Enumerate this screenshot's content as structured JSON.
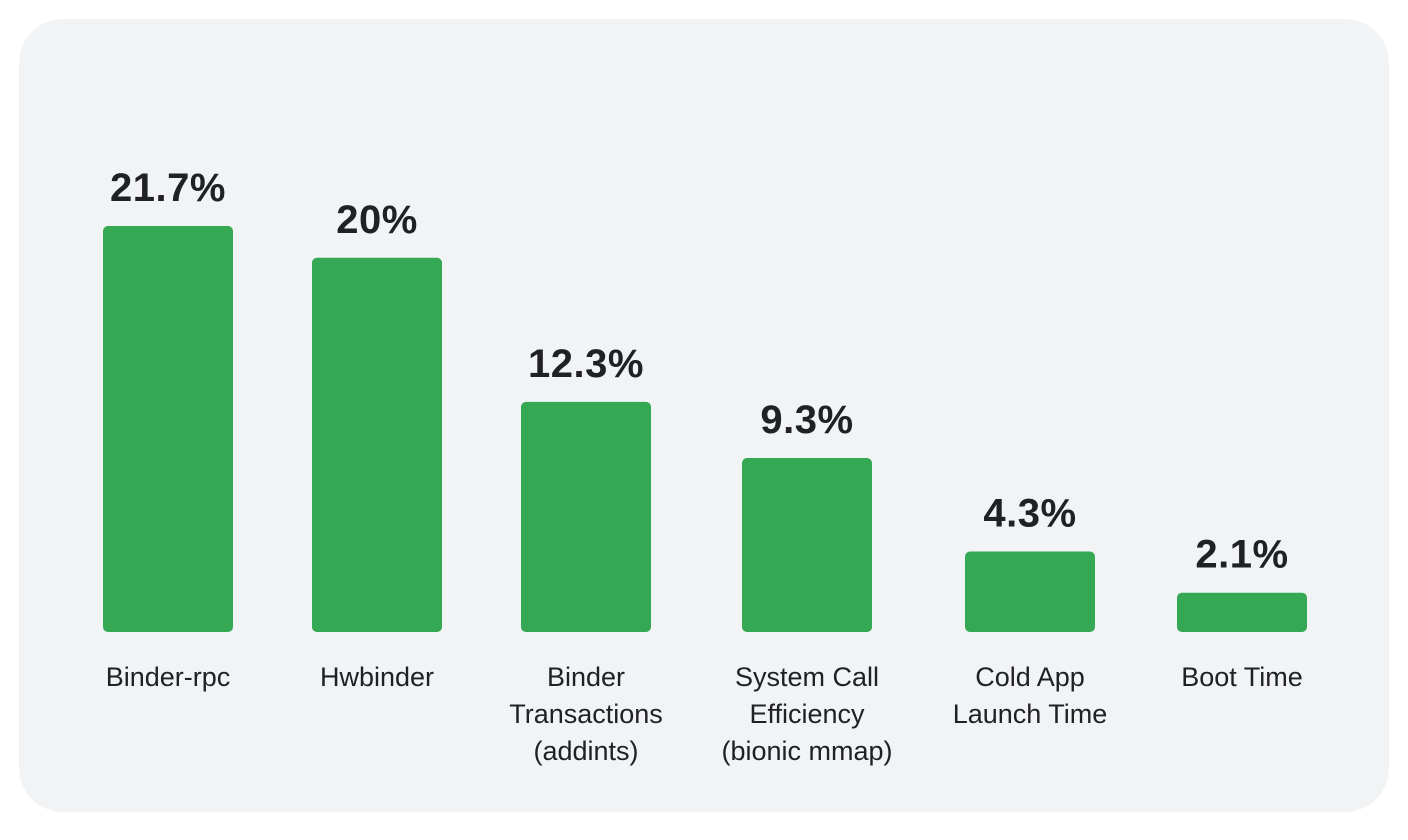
{
  "chart_data": {
    "type": "bar",
    "categories": [
      [
        "Binder-rpc"
      ],
      [
        "Hwbinder"
      ],
      [
        "Binder",
        "Transactions",
        "(addints)"
      ],
      [
        "System Call",
        "Efficiency",
        "(bionic mmap)"
      ],
      [
        "Cold App",
        "Launch Time"
      ],
      [
        "Boot Time"
      ]
    ],
    "values": [
      21.7,
      20,
      12.3,
      9.3,
      4.3,
      2.1
    ],
    "value_labels": [
      "21.7%",
      "20%",
      "12.3%",
      "9.3%",
      "4.3%",
      "2.1%"
    ],
    "ylim": [
      0,
      21.7
    ],
    "grid": false,
    "legend": "none",
    "title": "",
    "xlabel": "",
    "ylabel": ""
  },
  "colors": {
    "bar": "#34a853",
    "background": "#f1f3f4",
    "text": "#202124"
  }
}
